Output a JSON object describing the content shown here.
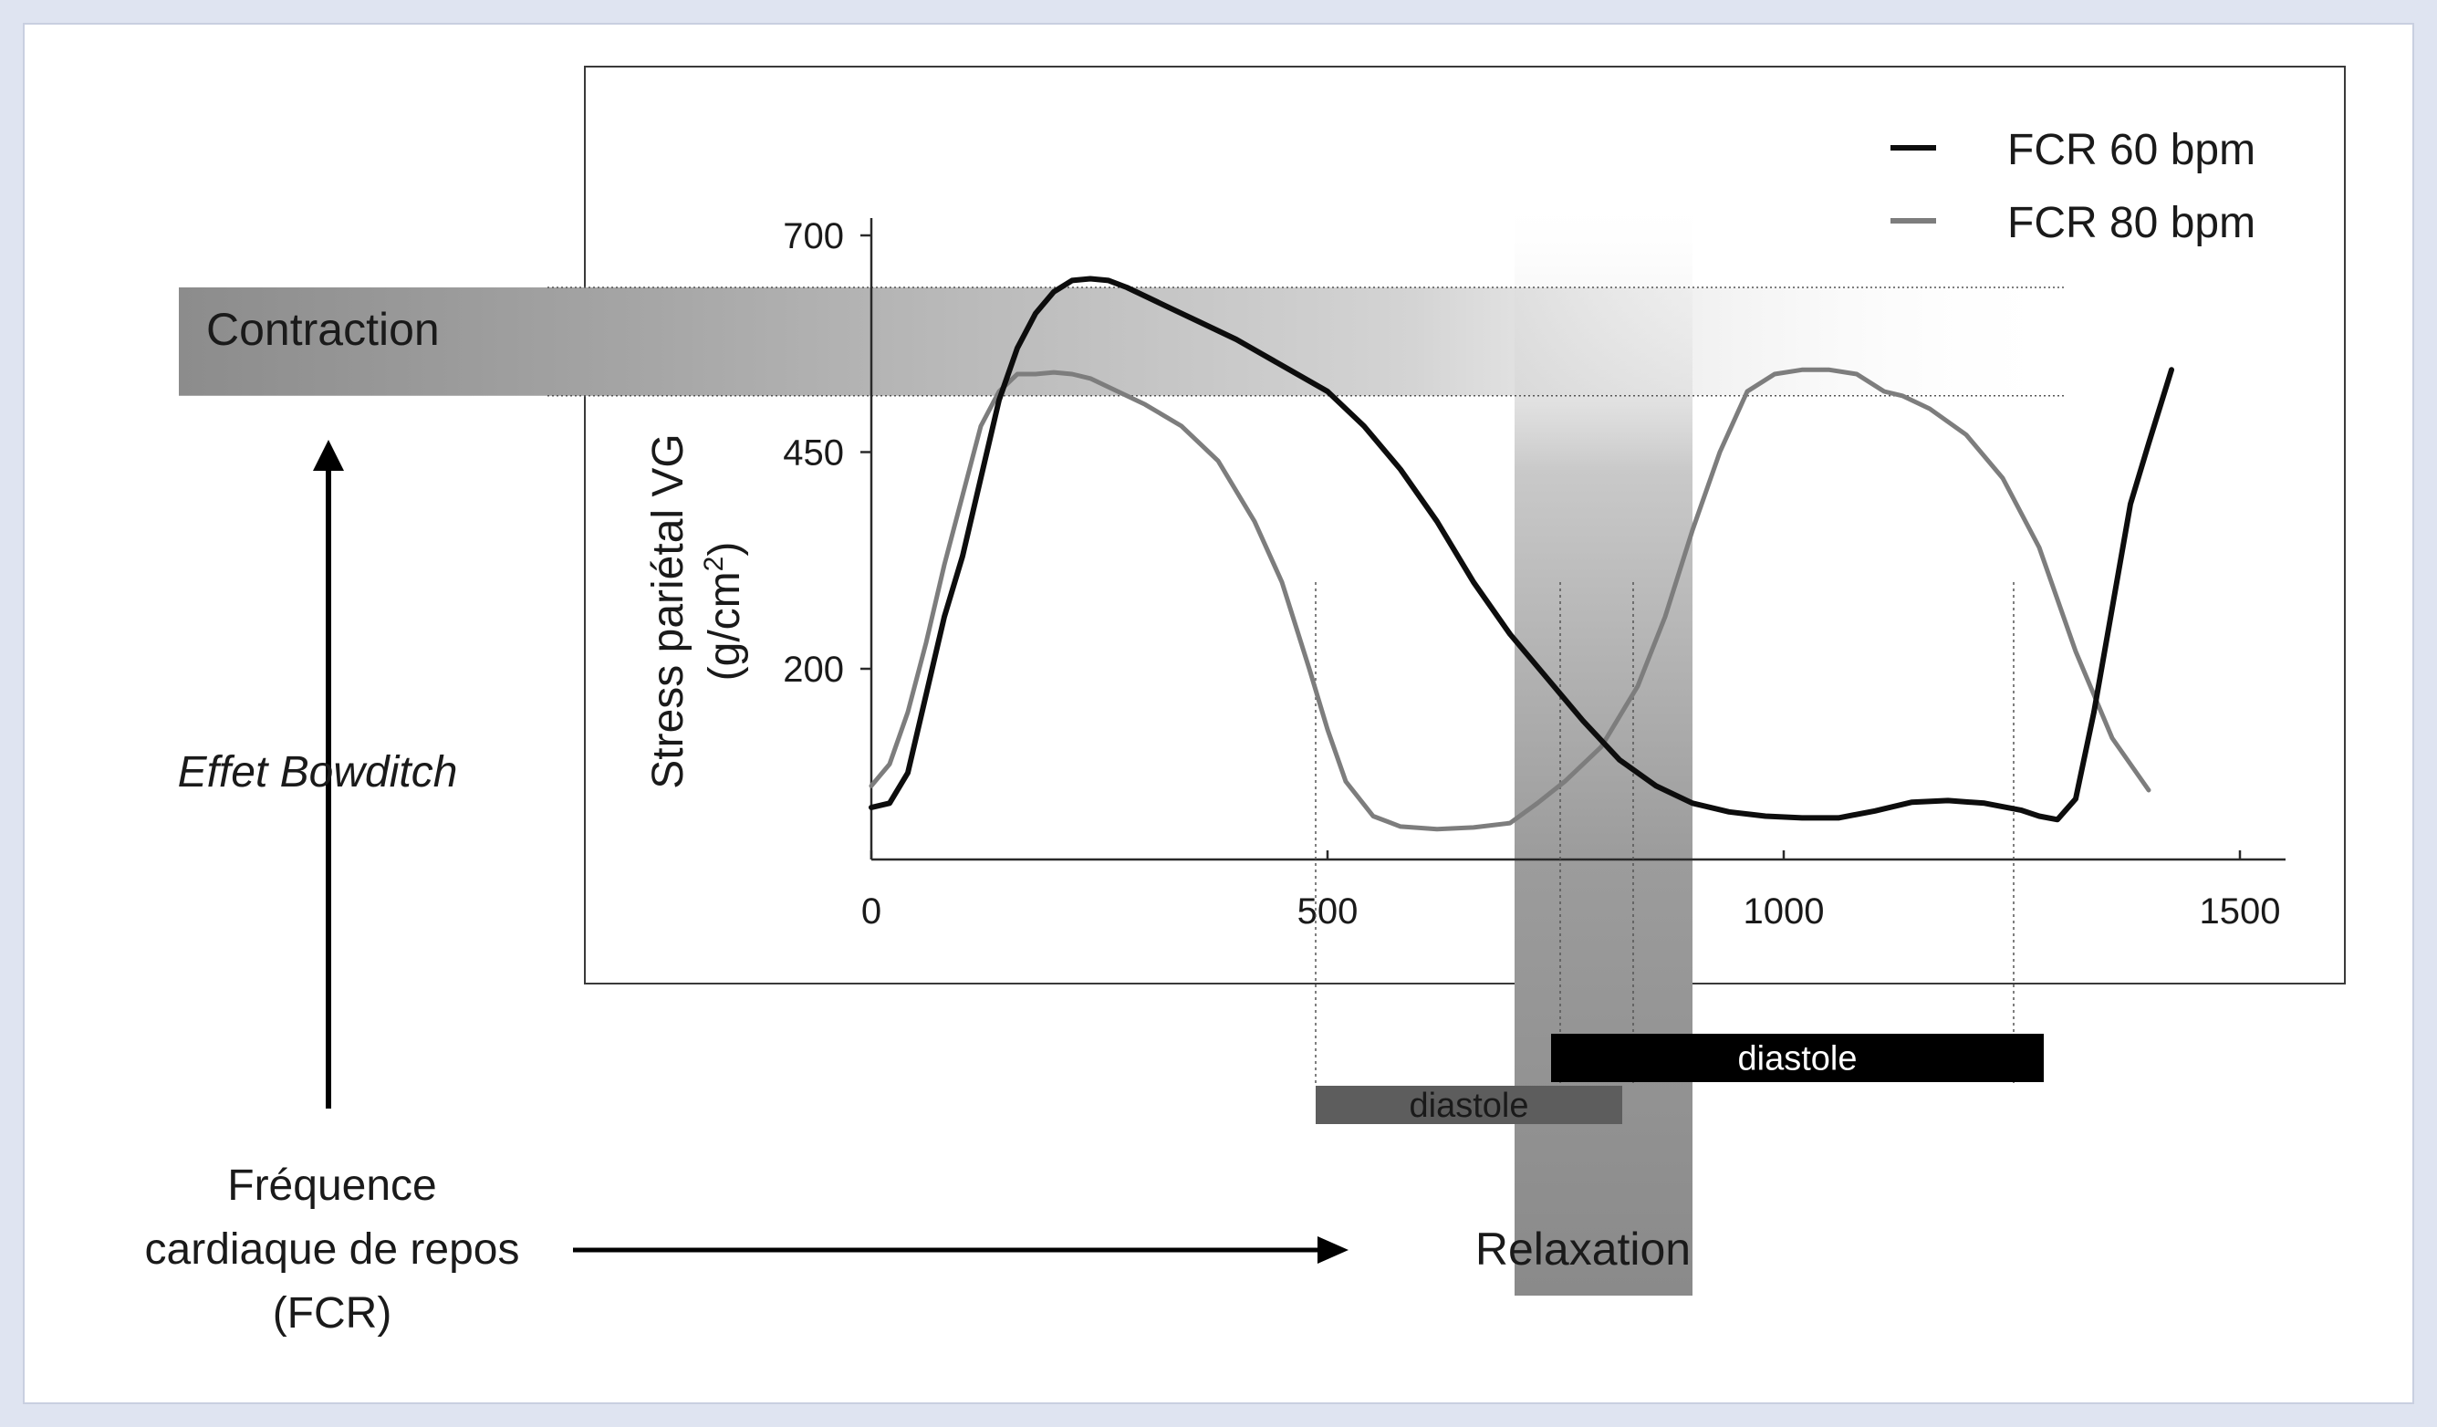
{
  "figure": {
    "contraction_label": "Contraction",
    "relaxation_label": "Relaxation",
    "bowditch_label": "Effet Bowditch",
    "fcr_label_lines": [
      "Fréquence",
      "cardiaque de repos",
      "(FCR)"
    ],
    "diastole_label": "diastole"
  },
  "colors": {
    "frame_background": "#dfe4f1",
    "series_60": "#0d0d0d",
    "series_80": "#7d7d7d",
    "band": "#8f8f8f"
  },
  "chart_data": {
    "type": "line",
    "title": "",
    "xlabel": "",
    "ylabel_lines": [
      "Stress pariétal VG",
      "(g/cm",
      "2",
      ")"
    ],
    "xlim": [
      0,
      1550
    ],
    "ylim": [
      -20,
      720
    ],
    "xticks": [
      0,
      500,
      1000,
      1500
    ],
    "yticks": [
      200,
      450,
      700
    ],
    "grid": false,
    "legend_position": "top-right",
    "contraction_band": [
      515,
      640
    ],
    "relaxation_band_x": [
      705,
      900
    ],
    "series": [
      {
        "name": "FCR 60 bpm",
        "color": "#0d0d0d",
        "x": [
          0,
          20,
          40,
          60,
          80,
          100,
          120,
          140,
          160,
          180,
          200,
          220,
          240,
          260,
          280,
          300,
          330,
          360,
          400,
          450,
          500,
          540,
          580,
          620,
          660,
          700,
          740,
          780,
          820,
          860,
          900,
          940,
          980,
          1020,
          1060,
          1100,
          1140,
          1180,
          1220,
          1260,
          1280,
          1300,
          1320,
          1340,
          1360,
          1380,
          1400,
          1425
        ],
        "y": [
          40,
          45,
          80,
          170,
          260,
          330,
          420,
          510,
          570,
          610,
          635,
          648,
          650,
          648,
          640,
          630,
          615,
          600,
          580,
          550,
          520,
          480,
          430,
          370,
          300,
          240,
          190,
          140,
          95,
          65,
          45,
          35,
          30,
          28,
          28,
          36,
          46,
          48,
          45,
          37,
          30,
          26,
          50,
          150,
          270,
          390,
          460,
          545
        ]
      },
      {
        "name": "FCR 80 bpm",
        "color": "#7d7d7d",
        "x": [
          0,
          20,
          40,
          60,
          80,
          100,
          120,
          140,
          160,
          180,
          200,
          220,
          240,
          260,
          280,
          300,
          340,
          380,
          420,
          450,
          480,
          500,
          520,
          550,
          580,
          620,
          660,
          700,
          730,
          760,
          800,
          840,
          870,
          900,
          930,
          960,
          990,
          1020,
          1050,
          1080,
          1110,
          1130,
          1160,
          1200,
          1240,
          1280,
          1320,
          1360,
          1400
        ],
        "y": [
          65,
          90,
          150,
          230,
          320,
          400,
          480,
          520,
          540,
          540,
          542,
          540,
          535,
          525,
          515,
          505,
          480,
          440,
          370,
          300,
          200,
          130,
          70,
          30,
          18,
          15,
          17,
          22,
          45,
          70,
          110,
          180,
          260,
          360,
          450,
          520,
          540,
          545,
          545,
          540,
          520,
          515,
          500,
          470,
          420,
          340,
          220,
          120,
          60
        ]
      }
    ],
    "diastole_bars": [
      {
        "series": "FCR 80 bpm",
        "x": [
          487,
          823
        ],
        "color": "#5d5d5d"
      },
      {
        "series": "FCR 60 bpm",
        "x": [
          745,
          1285
        ],
        "color": "#000000"
      }
    ],
    "guide_lines_x": [
      487,
      755,
      835,
      1252
    ]
  }
}
